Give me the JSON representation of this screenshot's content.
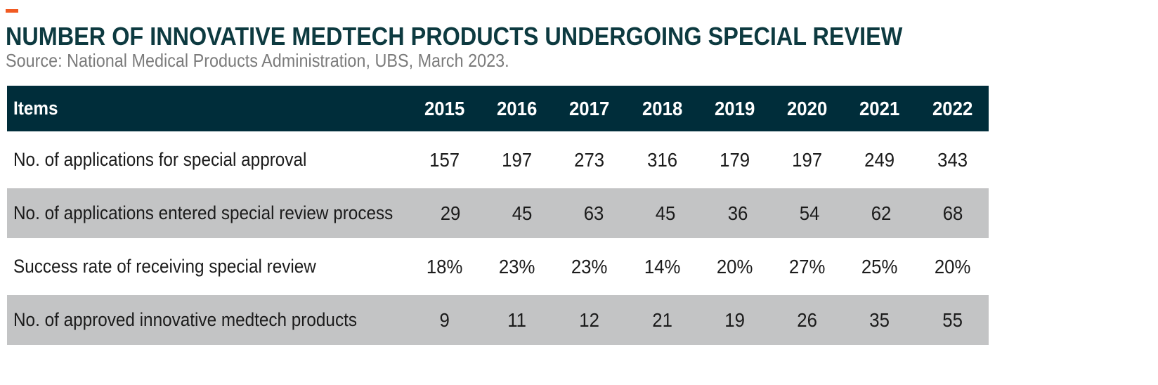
{
  "header": {
    "title": "NUMBER OF INNOVATIVE MEDTECH PRODUCTS UNDERGOING SPECIAL REVIEW",
    "subtitle": "Source: National Medical Products Administration, UBS, March 2023."
  },
  "colors": {
    "accent": "#f15a22",
    "title": "#0d3a40",
    "header_bg": "#002d3a",
    "shaded_row": "#c3c4c5"
  },
  "chart_data": {
    "type": "table",
    "title": "NUMBER OF INNOVATIVE MEDTECH PRODUCTS UNDERGOING SPECIAL REVIEW",
    "columns": [
      "Items",
      "2015",
      "2016",
      "2017",
      "2018",
      "2019",
      "2020",
      "2021",
      "2022"
    ],
    "rows": [
      {
        "label": "No. of applications for special approval",
        "values": [
          "157",
          "197",
          "273",
          "316",
          "179",
          "197",
          "249",
          "343"
        ]
      },
      {
        "label": "No. of applications entered special review process",
        "values": [
          "29",
          "45",
          "63",
          "45",
          "36",
          "54",
          "62",
          "68"
        ]
      },
      {
        "label": "Success rate of receiving special review",
        "values": [
          "18%",
          "23%",
          "23%",
          "14%",
          "20%",
          "27%",
          "25%",
          "20%"
        ]
      },
      {
        "label": "No. of approved innovative medtech products",
        "values": [
          "9",
          "11",
          "12",
          "21",
          "19",
          "26",
          "35",
          "55"
        ]
      }
    ]
  }
}
